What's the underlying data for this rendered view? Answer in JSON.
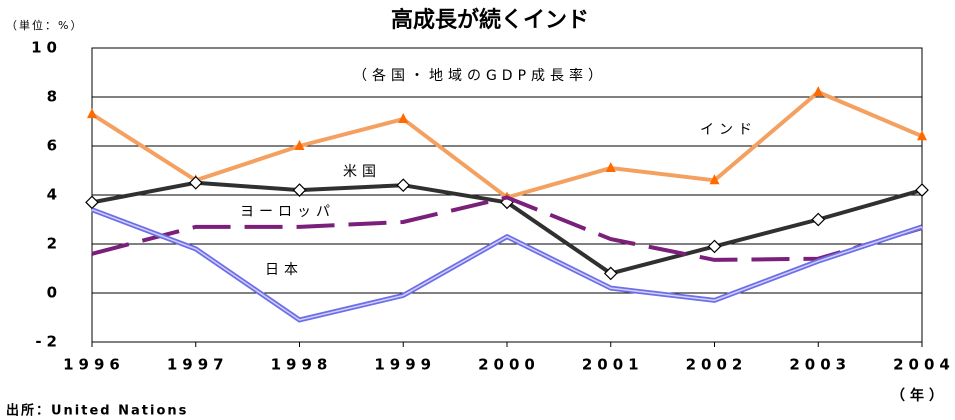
{
  "chart_data": {
    "type": "line",
    "title": "高成長が続くインド",
    "subtitle": "（各国・地域のGDP成長率）",
    "y_unit": "（単位：%）",
    "x_unit": "（年）",
    "source": "出所：United Nations",
    "x": [
      1996,
      1997,
      1998,
      1999,
      2000,
      2001,
      2002,
      2003,
      2004
    ],
    "xlim": [
      1996,
      2004
    ],
    "xticks": [
      1996,
      1997,
      1998,
      1999,
      2000,
      2001,
      2002,
      2003,
      2004
    ],
    "ylim": [
      -2,
      10
    ],
    "yticks": [
      -2,
      0,
      2,
      4,
      6,
      8,
      10
    ],
    "grid": true,
    "series": [
      {
        "name": "インド",
        "color": "#f4a060",
        "marker": "triangle",
        "marker_color": "#ff6a00",
        "values": [
          7.3,
          4.6,
          6.0,
          7.1,
          3.9,
          5.1,
          4.6,
          8.2,
          6.4
        ]
      },
      {
        "name": "米国",
        "color": "#303030",
        "marker": "diamond",
        "marker_color": "#000000",
        "values": [
          3.7,
          4.5,
          4.2,
          4.4,
          3.7,
          0.8,
          1.9,
          3.0,
          4.2
        ]
      },
      {
        "name": "ヨーロッパ",
        "color": "#7a1f7a",
        "dash": true,
        "values": [
          1.6,
          2.7,
          2.7,
          2.9,
          3.9,
          2.2,
          1.35,
          1.4,
          2.65
        ]
      },
      {
        "name": "日本",
        "color": "#6e6ee6",
        "double": true,
        "values": [
          3.4,
          1.8,
          -1.1,
          -0.1,
          2.3,
          0.2,
          -0.3,
          1.3,
          2.7
        ]
      }
    ]
  }
}
